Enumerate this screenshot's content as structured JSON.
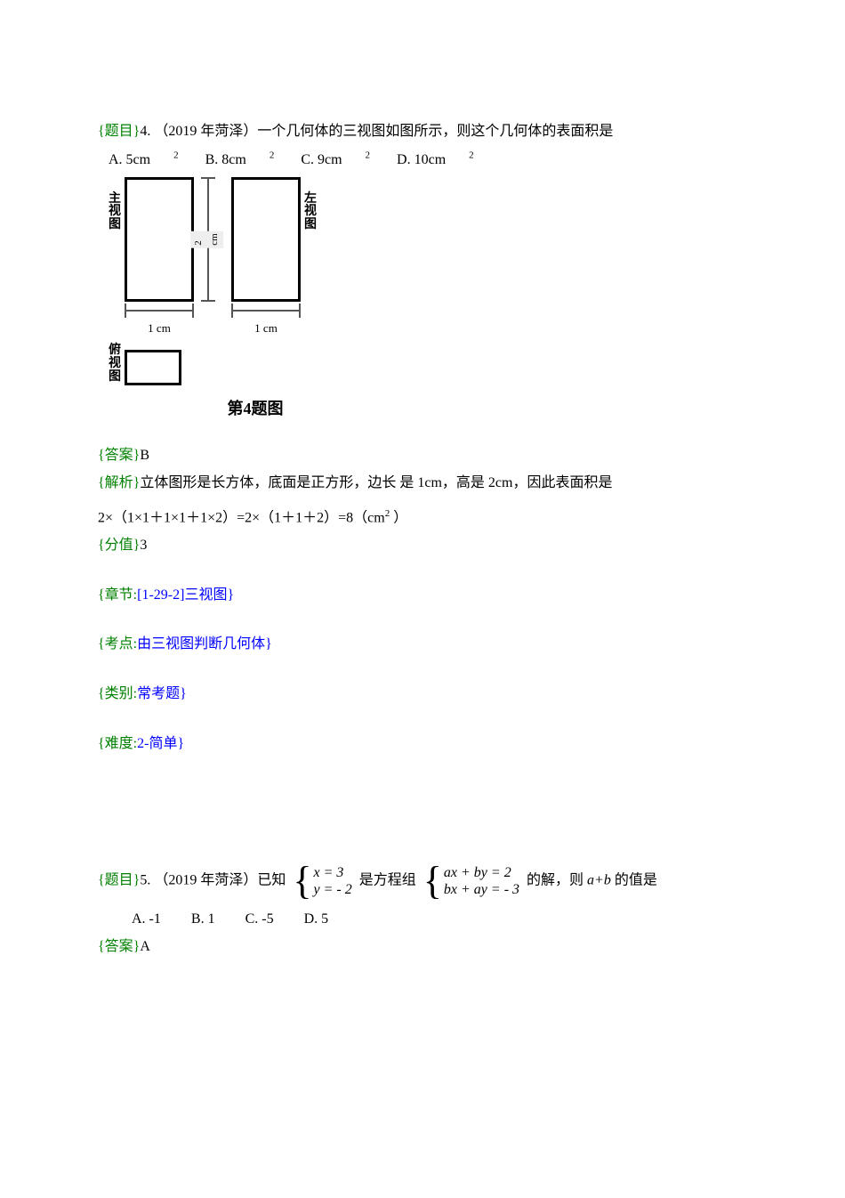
{
  "q4": {
    "prefix": "{题目}",
    "num_text": "4. （2019 年菏泽）一个几何体的三视图如图所示，则这个几何体的表面积是",
    "opt_a_pre": "A. 5cm",
    "opt_b_pre": "B.  8cm",
    "opt_c_pre": "C. 9cm",
    "opt_d_pre": "D. 10cm",
    "sq": "2",
    "diagram": {
      "label_main": "主视图",
      "label_left": "左视图",
      "label_top": "俯视图",
      "v_dim": "2 cm",
      "h_dim_main": "1 cm",
      "h_dim_left": "1 cm",
      "caption": "第4题图"
    },
    "ans_prefix": "{答案}",
    "ans": "B",
    "analysis_prefix": "{解析}",
    "analysis_text": "立体图形是长方体，底面是正方形，边长 是 1cm，高是 2cm，因此表面积是",
    "calc_pre": "2×（1×1＋1×1＋1×2）=2×（1＋1＋2）=8（cm",
    "calc_post": " ）",
    "score_prefix": "{分值}",
    "score": "3",
    "chapter_prefix": "{章节:",
    "chapter_body": "[1-29-2]三视图}",
    "point_prefix": "{考点:",
    "point_body": "由三视图判断几何体}",
    "type_prefix": "{类别:",
    "type_body": "常考题}",
    "diff_prefix": "{难度:",
    "diff_body": "2-简单}"
  },
  "q5": {
    "prefix": "{题目}",
    "text_pre": "5. （2019 年菏泽）已知",
    "sys1_top": "x = 3",
    "sys1_bot": "y = - 2",
    "text_mid": "是方程组",
    "sys2_top": "ax + by = 2",
    "sys2_bot": "bx + ay = - 3",
    "text_post1": "的解，则 ",
    "ab": "a+b",
    "text_post2": " 的值是",
    "opt_a": "A. -1",
    "opt_b": "B. 1",
    "opt_c": "C. -5",
    "opt_d": "D. 5",
    "ans_prefix": "{答案}",
    "ans": "A"
  }
}
